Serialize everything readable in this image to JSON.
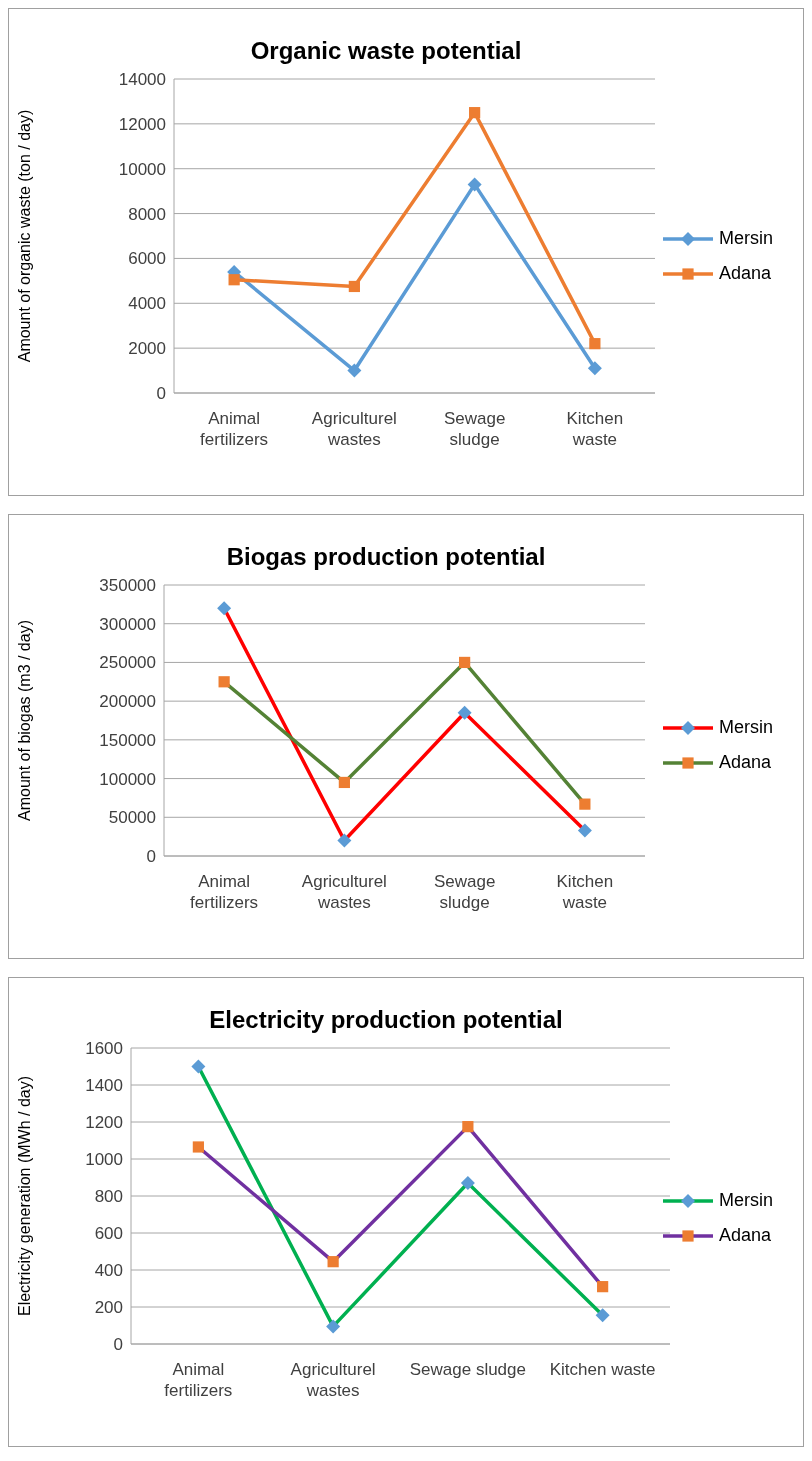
{
  "chart_data": [
    {
      "type": "line",
      "title": "Organic waste potential",
      "ylabel": "Amount of organic waste (ton / day)",
      "categories": [
        "Animal fertilizers",
        "Agriculturel wastes",
        "Sewage sludge",
        "Kitchen waste"
      ],
      "series": [
        {
          "name": "Mersin",
          "color": "#5b9bd5",
          "colors": [
            "#5b9bd5",
            "#5b9bd5",
            "#5b9bd5",
            "#5b9bd5"
          ],
          "marker": "diamond",
          "values": [
            5400,
            1000,
            9300,
            1100
          ]
        },
        {
          "name": "Adana",
          "color": "#ed7d31",
          "colors": [
            "#ed7d31",
            "#ed7d31",
            "#ed7d31",
            "#ed7d31"
          ],
          "marker": "square",
          "values": [
            5050,
            4750,
            12500,
            2200
          ]
        }
      ],
      "ylim": [
        0,
        14000
      ],
      "yticks": [
        0,
        2000,
        4000,
        6000,
        8000,
        10000,
        12000,
        14000
      ],
      "grid": "y",
      "legend": "right",
      "line_style": "solid"
    },
    {
      "type": "line",
      "title": "Biogas production potential",
      "ylabel": "Amount of biogas (m3 / day)",
      "categories": [
        "Animal fertilizers",
        "Agriculturel wastes",
        "Sewage sludge",
        "Kitchen waste"
      ],
      "series": [
        {
          "name": "Mersin",
          "color": "#ff0000",
          "colors": [
            "#5b9bd5",
            "#5b9bd5",
            "#5b9bd5",
            "#5b9bd5"
          ],
          "marker": "diamond",
          "values": [
            320000,
            20000,
            185000,
            33000
          ]
        },
        {
          "name": "Adana",
          "color": "#548235",
          "colors": [
            "#ed7d31",
            "#ed7d31",
            "#ed7d31",
            "#ed7d31"
          ],
          "marker": "square",
          "values": [
            225000,
            95000,
            250000,
            67000
          ]
        }
      ],
      "ylim": [
        0,
        350000
      ],
      "yticks": [
        0,
        50000,
        100000,
        150000,
        200000,
        250000,
        300000,
        350000
      ],
      "grid": "y",
      "legend": "right",
      "line_style": "solid"
    },
    {
      "type": "line",
      "title": "Electricity production potential",
      "ylabel": "Electricity generation (MWh / day)",
      "categories": [
        "Animal fertilizers",
        "Agriculturel wastes",
        "Sewage sludge",
        "Kitchen waste"
      ],
      "series": [
        {
          "name": "Mersin",
          "color": "#00b050",
          "colors": [
            "#5b9bd5",
            "#5b9bd5",
            "#5b9bd5",
            "#5b9bd5"
          ],
          "marker": "diamond",
          "values": [
            1500,
            95,
            870,
            155
          ]
        },
        {
          "name": "Adana",
          "color": "#7030a0",
          "colors": [
            "#ed7d31",
            "#ed7d31",
            "#ed7d31",
            "#ed7d31"
          ],
          "marker": "square",
          "values": [
            1065,
            445,
            1175,
            310
          ]
        }
      ],
      "ylim": [
        0,
        1600
      ],
      "yticks": [
        0,
        200,
        400,
        600,
        800,
        1000,
        1200,
        1400,
        1600
      ],
      "grid": "y",
      "legend": "right",
      "line_style": "solid"
    }
  ]
}
